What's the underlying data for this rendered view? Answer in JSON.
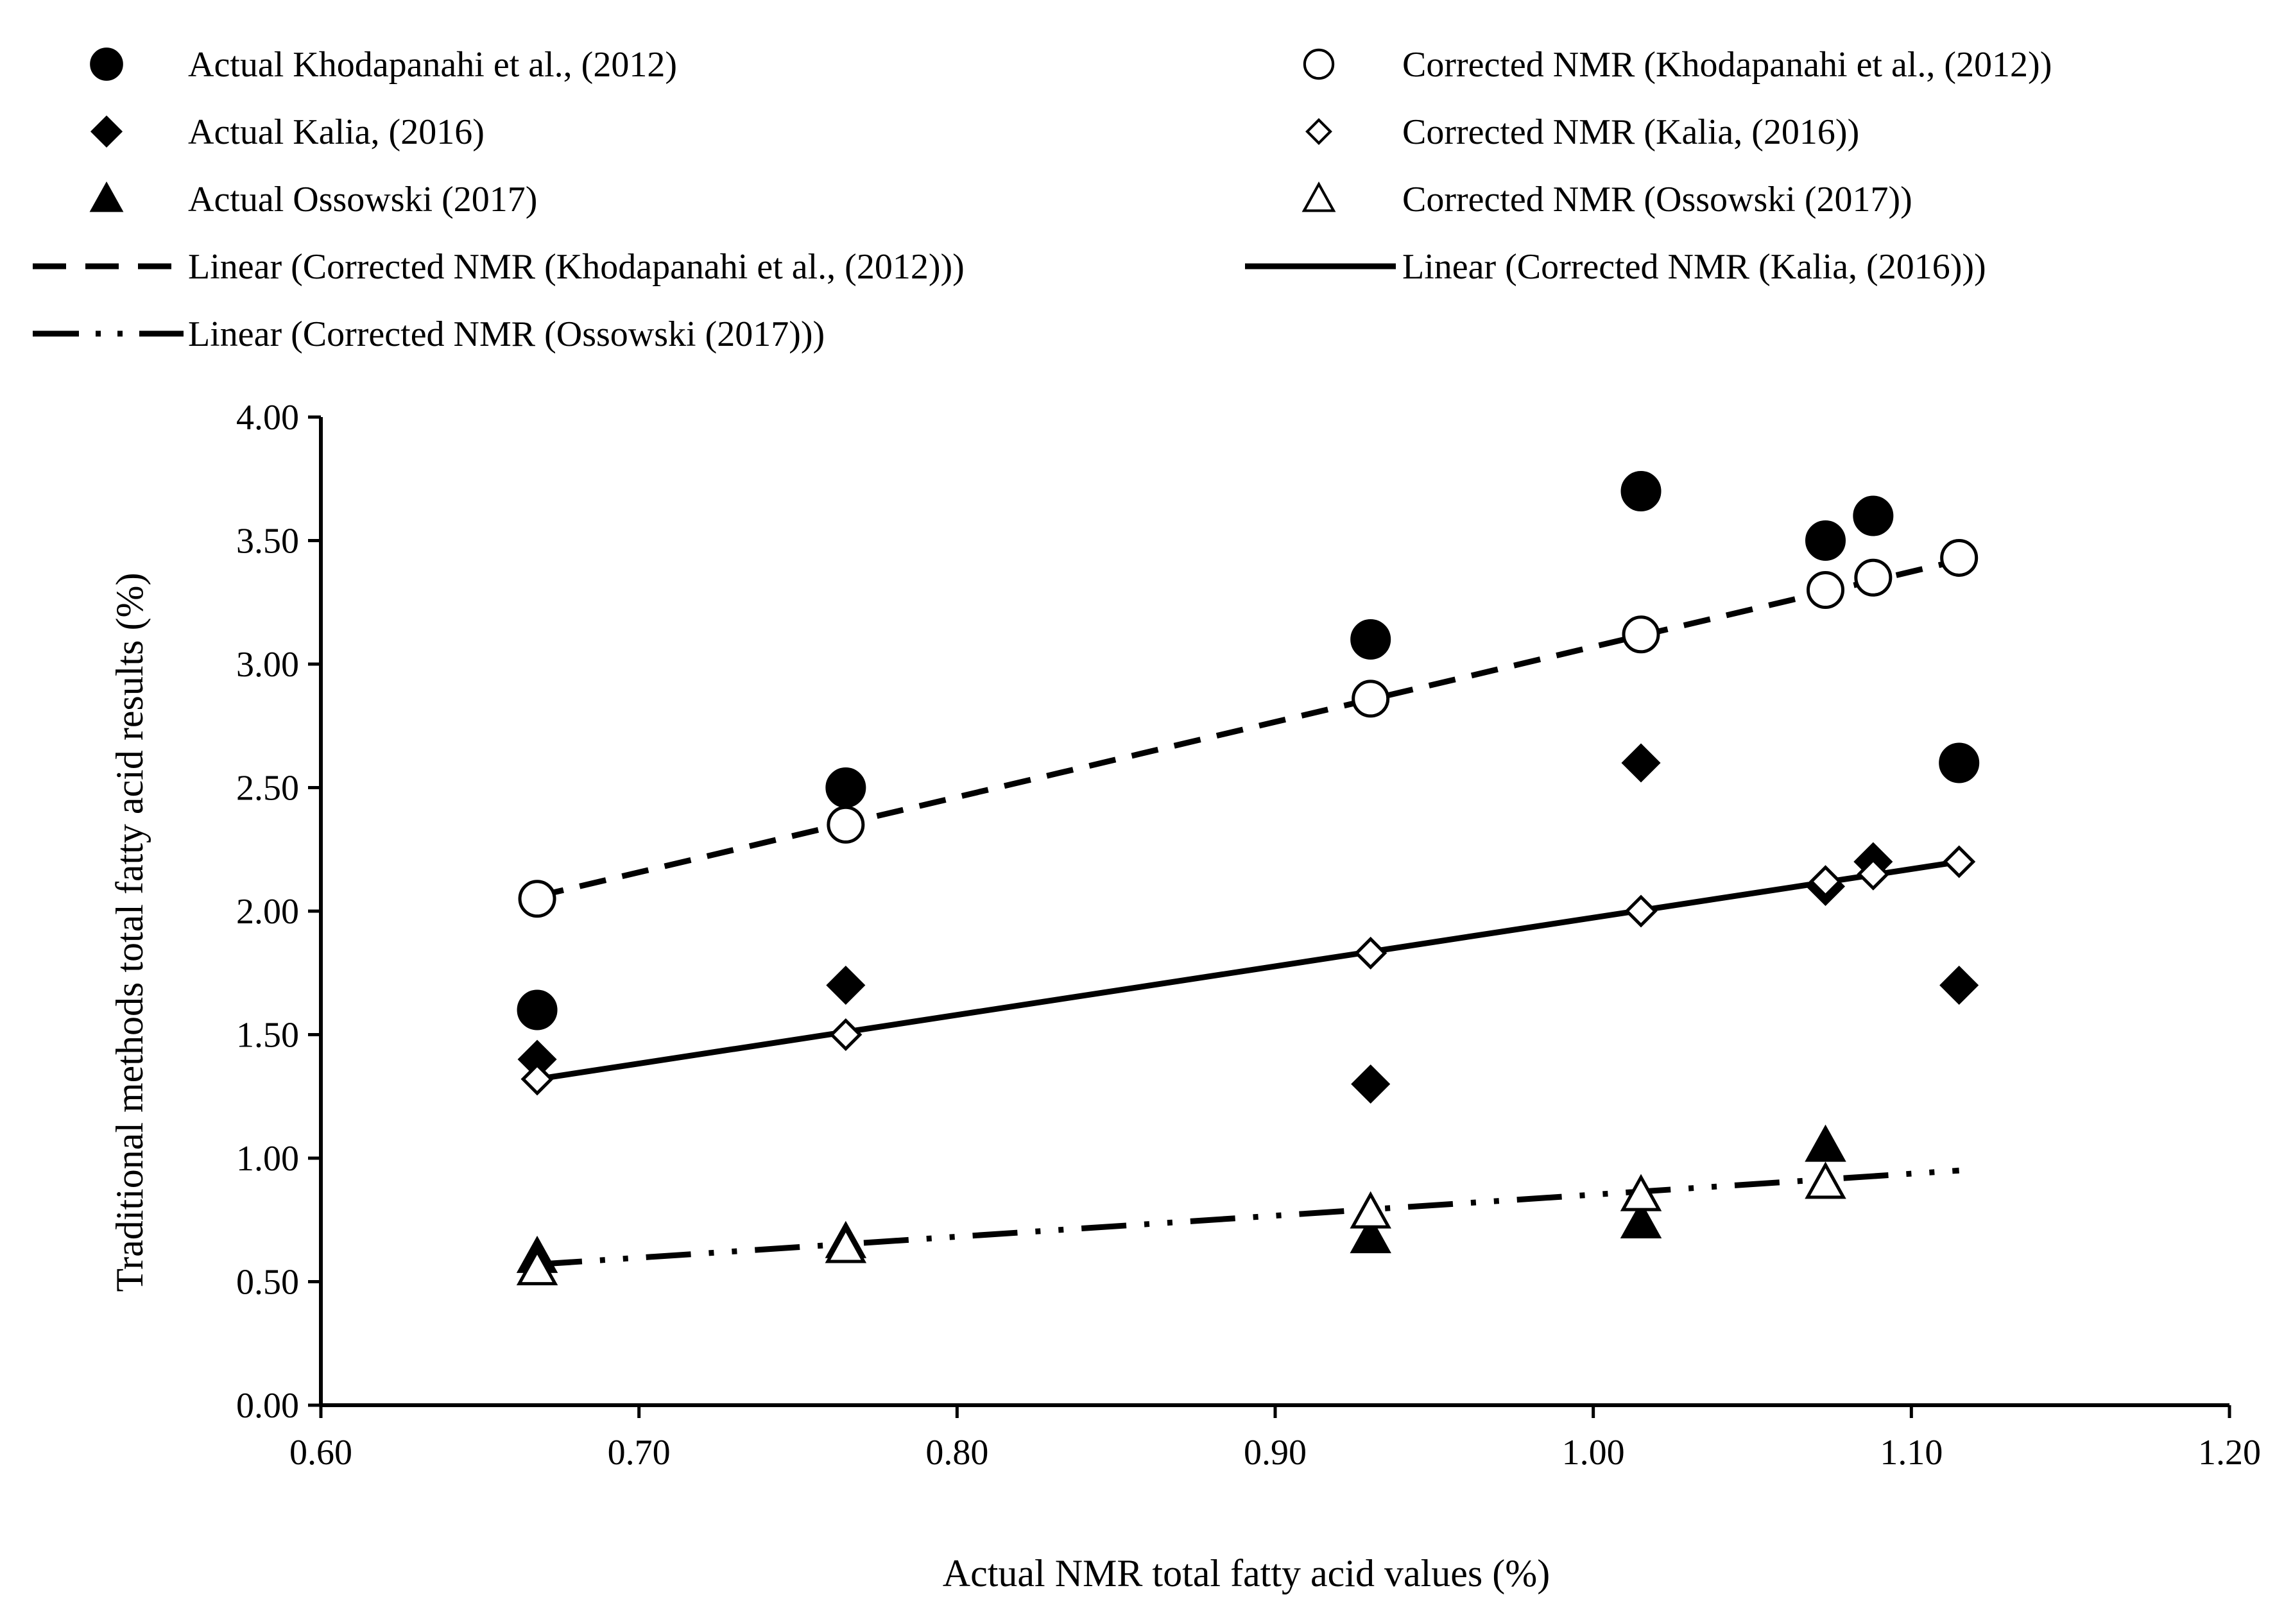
{
  "chart_data": {
    "type": "scatter",
    "xlabel": "Actual NMR total fatty acid values (%)",
    "ylabel": "Traditional methods total fatty acid results (%)",
    "xlim": [
      0.6,
      1.2
    ],
    "ylim": [
      0.0,
      4.0
    ],
    "xticks": [
      "0.60",
      "0.70",
      "0.80",
      "0.90",
      "1.00",
      "1.10",
      "1.20"
    ],
    "yticks": [
      "0.00",
      "0.50",
      "1.00",
      "1.50",
      "2.00",
      "2.50",
      "3.00",
      "3.50",
      "4.00"
    ],
    "grid": false,
    "legend_position": "top",
    "series": [
      {
        "name": "Actual Khodapanahi et al., (2012)",
        "marker": "circle-filled",
        "x": [
          0.668,
          0.765,
          0.93,
          1.015,
          1.073,
          1.088,
          1.115
        ],
        "y": [
          1.6,
          2.5,
          3.1,
          3.7,
          3.5,
          3.6,
          2.6
        ]
      },
      {
        "name": "Corrected NMR (Khodapanahi et al., (2012))",
        "marker": "circle-open",
        "x": [
          0.668,
          0.765,
          0.93,
          1.015,
          1.073,
          1.088,
          1.115
        ],
        "y": [
          2.05,
          2.35,
          2.86,
          3.12,
          3.3,
          3.35,
          3.43
        ]
      },
      {
        "name": "Actual Kalia, (2016)",
        "marker": "diamond-filled",
        "x": [
          0.668,
          0.765,
          0.93,
          1.015,
          1.073,
          1.088,
          1.115
        ],
        "y": [
          1.4,
          1.7,
          1.3,
          2.6,
          2.1,
          2.2,
          1.7
        ]
      },
      {
        "name": "Corrected NMR (Kalia, (2016))",
        "marker": "diamond-open",
        "x": [
          0.668,
          0.765,
          0.93,
          1.015,
          1.073,
          1.088,
          1.115
        ],
        "y": [
          1.32,
          1.5,
          1.83,
          2.0,
          2.12,
          2.15,
          2.2
        ]
      },
      {
        "name": "Actual Ossowski (2017)",
        "marker": "triangle-filled",
        "x": [
          0.668,
          0.765,
          0.93,
          1.015,
          1.073
        ],
        "y": [
          0.6,
          0.66,
          0.68,
          0.74,
          1.05
        ]
      },
      {
        "name": "Corrected NMR (Ossowski (2017))",
        "marker": "triangle-open",
        "x": [
          0.668,
          0.765,
          0.93,
          1.015,
          1.073
        ],
        "y": [
          0.55,
          0.64,
          0.78,
          0.85,
          0.9
        ]
      }
    ],
    "trendlines": [
      {
        "name": "Linear (Corrected NMR (Khodapanahi et al., (2012)))",
        "style": "dashed",
        "x": [
          0.668,
          1.115
        ],
        "y": [
          2.06,
          3.42
        ]
      },
      {
        "name": "Linear (Corrected NMR (Kalia, (2016)))",
        "style": "solid",
        "x": [
          0.668,
          1.115
        ],
        "y": [
          1.32,
          2.2
        ]
      },
      {
        "name": "Linear (Corrected NMR (Ossowski (2017)))",
        "style": "long-dash-dot-dot",
        "x": [
          0.668,
          1.115
        ],
        "y": [
          0.57,
          0.95
        ]
      }
    ],
    "legend": [
      {
        "label": "Actual Khodapanahi et al., (2012)",
        "symbol": "circle-filled"
      },
      {
        "label": "Corrected NMR (Khodapanahi et al., (2012))",
        "symbol": "circle-open"
      },
      {
        "label": "Actual Kalia, (2016)",
        "symbol": "diamond-filled"
      },
      {
        "label": "Corrected NMR (Kalia, (2016))",
        "symbol": "diamond-open"
      },
      {
        "label": "Actual Ossowski (2017)",
        "symbol": "triangle-filled"
      },
      {
        "label": "Corrected NMR (Ossowski (2017))",
        "symbol": "triangle-open"
      },
      {
        "label": "Linear (Corrected NMR (Khodapanahi et al., (2012)))",
        "symbol": "dashed"
      },
      {
        "label": "Linear (Corrected NMR (Kalia, (2016)))",
        "symbol": "solid"
      },
      {
        "label": "Linear (Corrected NMR (Ossowski (2017)))",
        "symbol": "long-dash-dot-dot"
      }
    ]
  }
}
